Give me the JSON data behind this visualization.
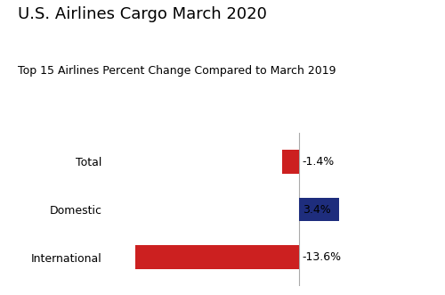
{
  "title": "U.S. Airlines Cargo March 2020",
  "subtitle": "Top 15 Airlines Percent Change Compared to March 2019",
  "categories": [
    "International",
    "Domestic",
    "Total"
  ],
  "values": [
    -13.6,
    3.4,
    -1.4
  ],
  "labels": [
    "-13.6%",
    "3.4%",
    "-1.4%"
  ],
  "colors": [
    "#cc2020",
    "#1e2d7d",
    "#cc2020"
  ],
  "background_color": "#ffffff",
  "title_fontsize": 13,
  "subtitle_fontsize": 9,
  "label_fontsize": 9,
  "tick_fontsize": 9,
  "zero_line_color": "#aaaaaa",
  "bar_height": 0.5,
  "xlim_min": -16,
  "xlim_max": 7
}
